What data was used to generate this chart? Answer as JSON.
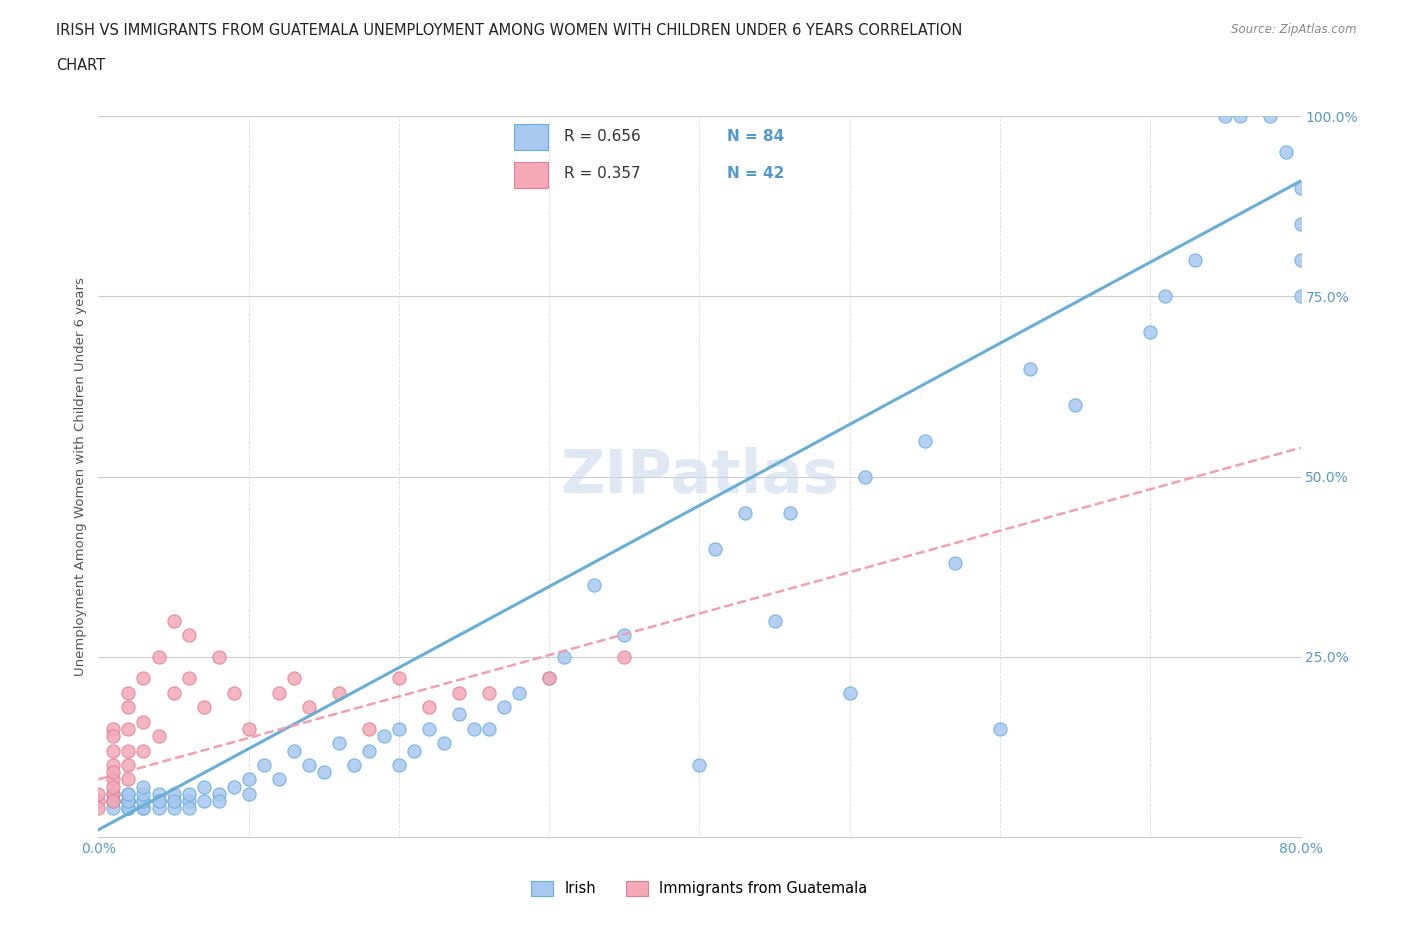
{
  "title_line1": "IRISH VS IMMIGRANTS FROM GUATEMALA UNEMPLOYMENT AMONG WOMEN WITH CHILDREN UNDER 6 YEARS CORRELATION",
  "title_line2": "CHART",
  "source": "Source: ZipAtlas.com",
  "ylabel": "Unemployment Among Women with Children Under 6 years",
  "xlim": [
    0.0,
    0.8
  ],
  "ylim": [
    0.0,
    1.0
  ],
  "irish_color": "#a8c8f0",
  "guatemalan_color": "#f4a8b8",
  "irish_R": 0.656,
  "irish_N": 84,
  "guatemalan_R": 0.357,
  "guatemalan_N": 42,
  "irish_line_color": "#6aaed6",
  "guatemalan_line_color": "#f0a0b0",
  "legend_irish_label": "Irish",
  "legend_guatemalan_label": "Immigrants from Guatemala",
  "irish_x": [
    0.01,
    0.01,
    0.01,
    0.01,
    0.02,
    0.02,
    0.02,
    0.02,
    0.02,
    0.02,
    0.02,
    0.02,
    0.02,
    0.03,
    0.03,
    0.03,
    0.03,
    0.03,
    0.03,
    0.04,
    0.04,
    0.04,
    0.04,
    0.04,
    0.05,
    0.05,
    0.05,
    0.05,
    0.06,
    0.06,
    0.06,
    0.07,
    0.07,
    0.08,
    0.08,
    0.09,
    0.1,
    0.1,
    0.11,
    0.12,
    0.13,
    0.14,
    0.15,
    0.16,
    0.17,
    0.18,
    0.19,
    0.2,
    0.2,
    0.21,
    0.22,
    0.23,
    0.24,
    0.25,
    0.26,
    0.27,
    0.28,
    0.3,
    0.31,
    0.33,
    0.35,
    0.4,
    0.41,
    0.43,
    0.45,
    0.46,
    0.5,
    0.51,
    0.55,
    0.57,
    0.6,
    0.62,
    0.65,
    0.7,
    0.71,
    0.73,
    0.75,
    0.76,
    0.78,
    0.79,
    0.8,
    0.8,
    0.8,
    0.8
  ],
  "irish_y": [
    0.05,
    0.06,
    0.05,
    0.04,
    0.05,
    0.05,
    0.04,
    0.06,
    0.05,
    0.04,
    0.04,
    0.05,
    0.06,
    0.04,
    0.05,
    0.04,
    0.05,
    0.06,
    0.07,
    0.05,
    0.05,
    0.06,
    0.04,
    0.05,
    0.05,
    0.06,
    0.04,
    0.05,
    0.05,
    0.06,
    0.04,
    0.07,
    0.05,
    0.06,
    0.05,
    0.07,
    0.08,
    0.06,
    0.1,
    0.08,
    0.12,
    0.1,
    0.09,
    0.13,
    0.1,
    0.12,
    0.14,
    0.1,
    0.15,
    0.12,
    0.15,
    0.13,
    0.17,
    0.15,
    0.15,
    0.18,
    0.2,
    0.22,
    0.25,
    0.35,
    0.28,
    0.1,
    0.4,
    0.45,
    0.3,
    0.45,
    0.2,
    0.5,
    0.55,
    0.38,
    0.15,
    0.65,
    0.6,
    0.7,
    0.75,
    0.8,
    1.0,
    1.0,
    1.0,
    0.95,
    0.9,
    0.85,
    0.8,
    0.75
  ],
  "guatemalan_x": [
    0.0,
    0.0,
    0.0,
    0.01,
    0.01,
    0.01,
    0.01,
    0.01,
    0.01,
    0.01,
    0.01,
    0.01,
    0.02,
    0.02,
    0.02,
    0.02,
    0.02,
    0.02,
    0.03,
    0.03,
    0.03,
    0.04,
    0.04,
    0.05,
    0.05,
    0.06,
    0.06,
    0.07,
    0.08,
    0.09,
    0.1,
    0.12,
    0.13,
    0.14,
    0.16,
    0.18,
    0.2,
    0.22,
    0.24,
    0.26,
    0.3,
    0.35
  ],
  "guatemalan_y": [
    0.05,
    0.06,
    0.04,
    0.06,
    0.1,
    0.08,
    0.05,
    0.12,
    0.09,
    0.07,
    0.15,
    0.14,
    0.08,
    0.12,
    0.15,
    0.2,
    0.1,
    0.18,
    0.12,
    0.16,
    0.22,
    0.14,
    0.25,
    0.2,
    0.3,
    0.22,
    0.28,
    0.18,
    0.25,
    0.2,
    0.15,
    0.2,
    0.22,
    0.18,
    0.2,
    0.15,
    0.22,
    0.18,
    0.2,
    0.2,
    0.22,
    0.25
  ],
  "irish_trend_x": [
    0.0,
    0.8
  ],
  "irish_trend_y": [
    0.01,
    0.91
  ],
  "guatemalan_trend_x": [
    0.0,
    0.8
  ],
  "guatemalan_trend_y": [
    0.08,
    0.54
  ]
}
